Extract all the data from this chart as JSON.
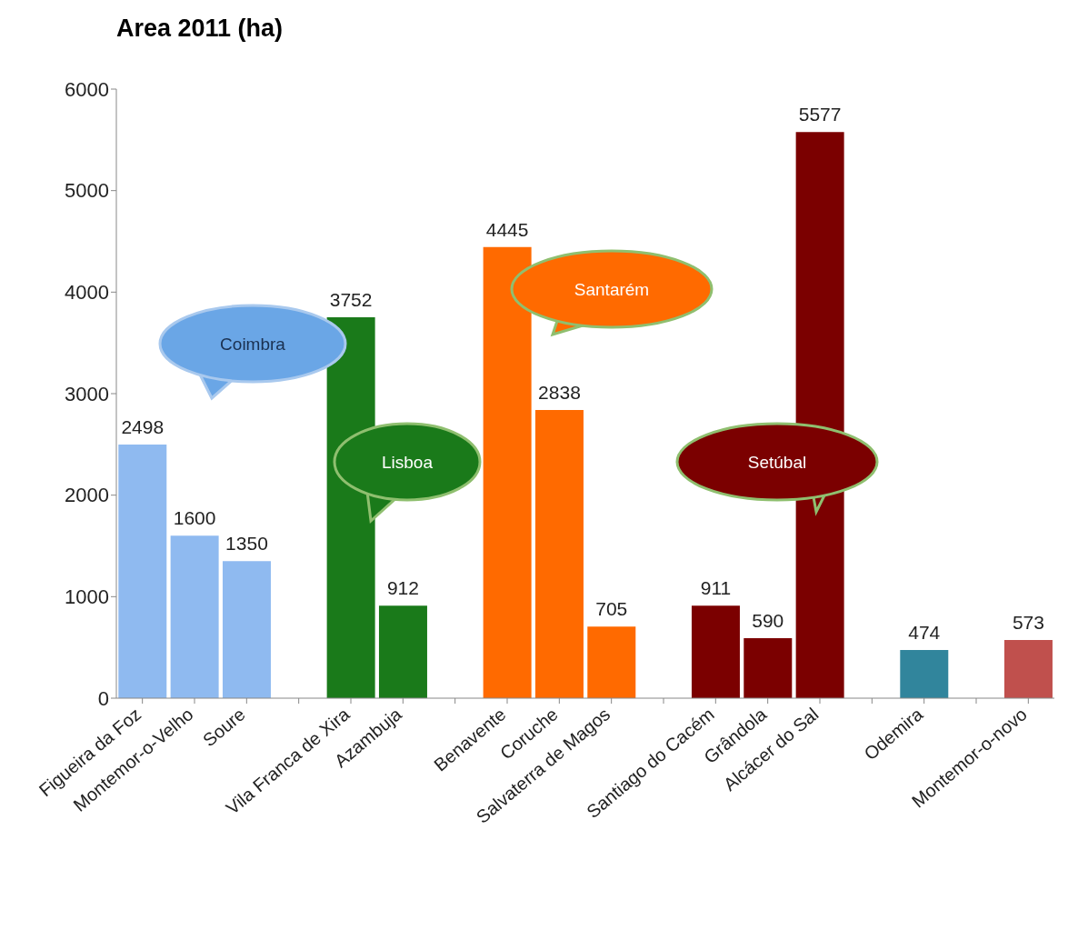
{
  "chart_data": {
    "type": "bar",
    "title": "Area 2011 (ha)",
    "categories": [
      "Figueira da Foz",
      "Montemor-o-Velho",
      "Soure",
      null,
      "Vila Franca de Xira",
      "Azambuja",
      null,
      "Benavente",
      "Coruche",
      "Salvaterra de Magos",
      null,
      "Santiago do Cacém",
      "Grândola",
      "Alcácer do Sal",
      null,
      "Odemira",
      null,
      "Montemor-o-novo"
    ],
    "values": [
      2498,
      1600,
      1350,
      null,
      3752,
      912,
      null,
      4445,
      2838,
      705,
      null,
      911,
      590,
      5577,
      null,
      474,
      null,
      573
    ],
    "colors": [
      "#8fbaf0",
      "#8fbaf0",
      "#8fbaf0",
      null,
      "#1a7a1a",
      "#1a7a1a",
      null,
      "#ff6a00",
      "#ff6a00",
      "#ff6a00",
      null,
      "#7b0000",
      "#7b0000",
      "#7b0000",
      null,
      "#31859c",
      null,
      "#c0504d"
    ],
    "ylim": [
      0,
      6000
    ],
    "yticks": [
      0,
      1000,
      2000,
      3000,
      4000,
      5000,
      6000
    ],
    "data_labels": true,
    "grid": false,
    "legend": false,
    "annotations": [
      "Coimbra",
      "Lisboa",
      "Santarém",
      "Setúbal"
    ]
  }
}
